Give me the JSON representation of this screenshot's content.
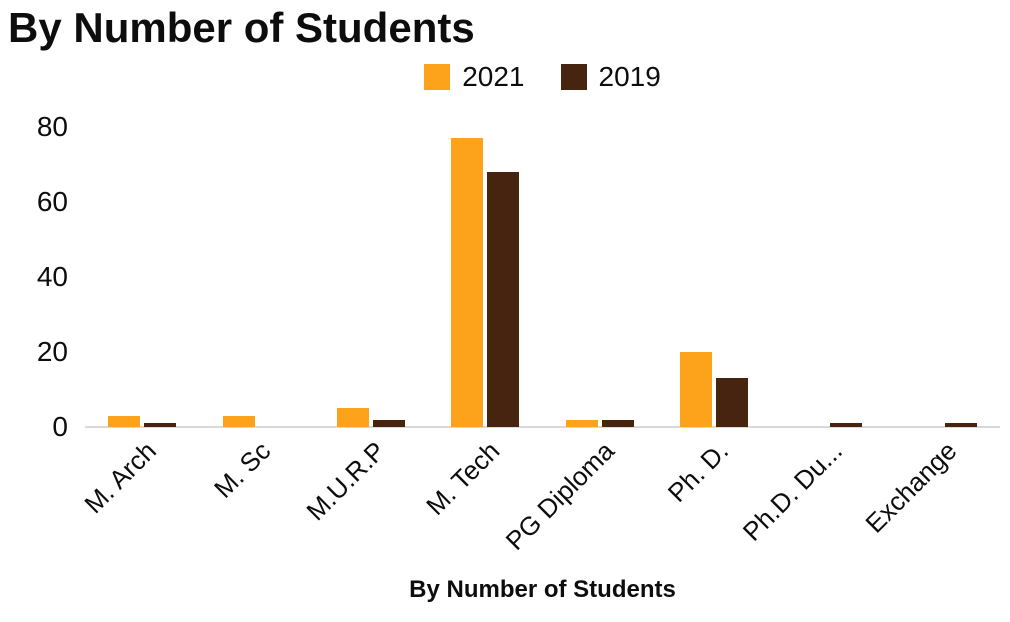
{
  "chart_data": {
    "type": "bar",
    "title": "By Number of Students",
    "xlabel": "By Number of Students",
    "ylabel": "",
    "categories": [
      "M. Arch",
      "M. Sc",
      "M.U.R.P",
      "M. Tech",
      "PG Diploma",
      "Ph. D.",
      "Ph.D. Du...",
      "Exchange"
    ],
    "series": [
      {
        "name": "2021",
        "color": "#FCA21B",
        "values": [
          3,
          3,
          5,
          77,
          2,
          20,
          0,
          0
        ]
      },
      {
        "name": "2019",
        "color": "#47240F",
        "values": [
          1,
          0,
          2,
          68,
          2,
          13,
          1,
          1
        ]
      }
    ],
    "ylim": [
      0,
      80
    ],
    "yticks": [
      0,
      20,
      40,
      60,
      80
    ],
    "legend_position": "top-center",
    "grid": false,
    "axis_line_color": "#d9d9d9",
    "background_color": "#ffffff",
    "text_color": "#0d0d0d"
  }
}
